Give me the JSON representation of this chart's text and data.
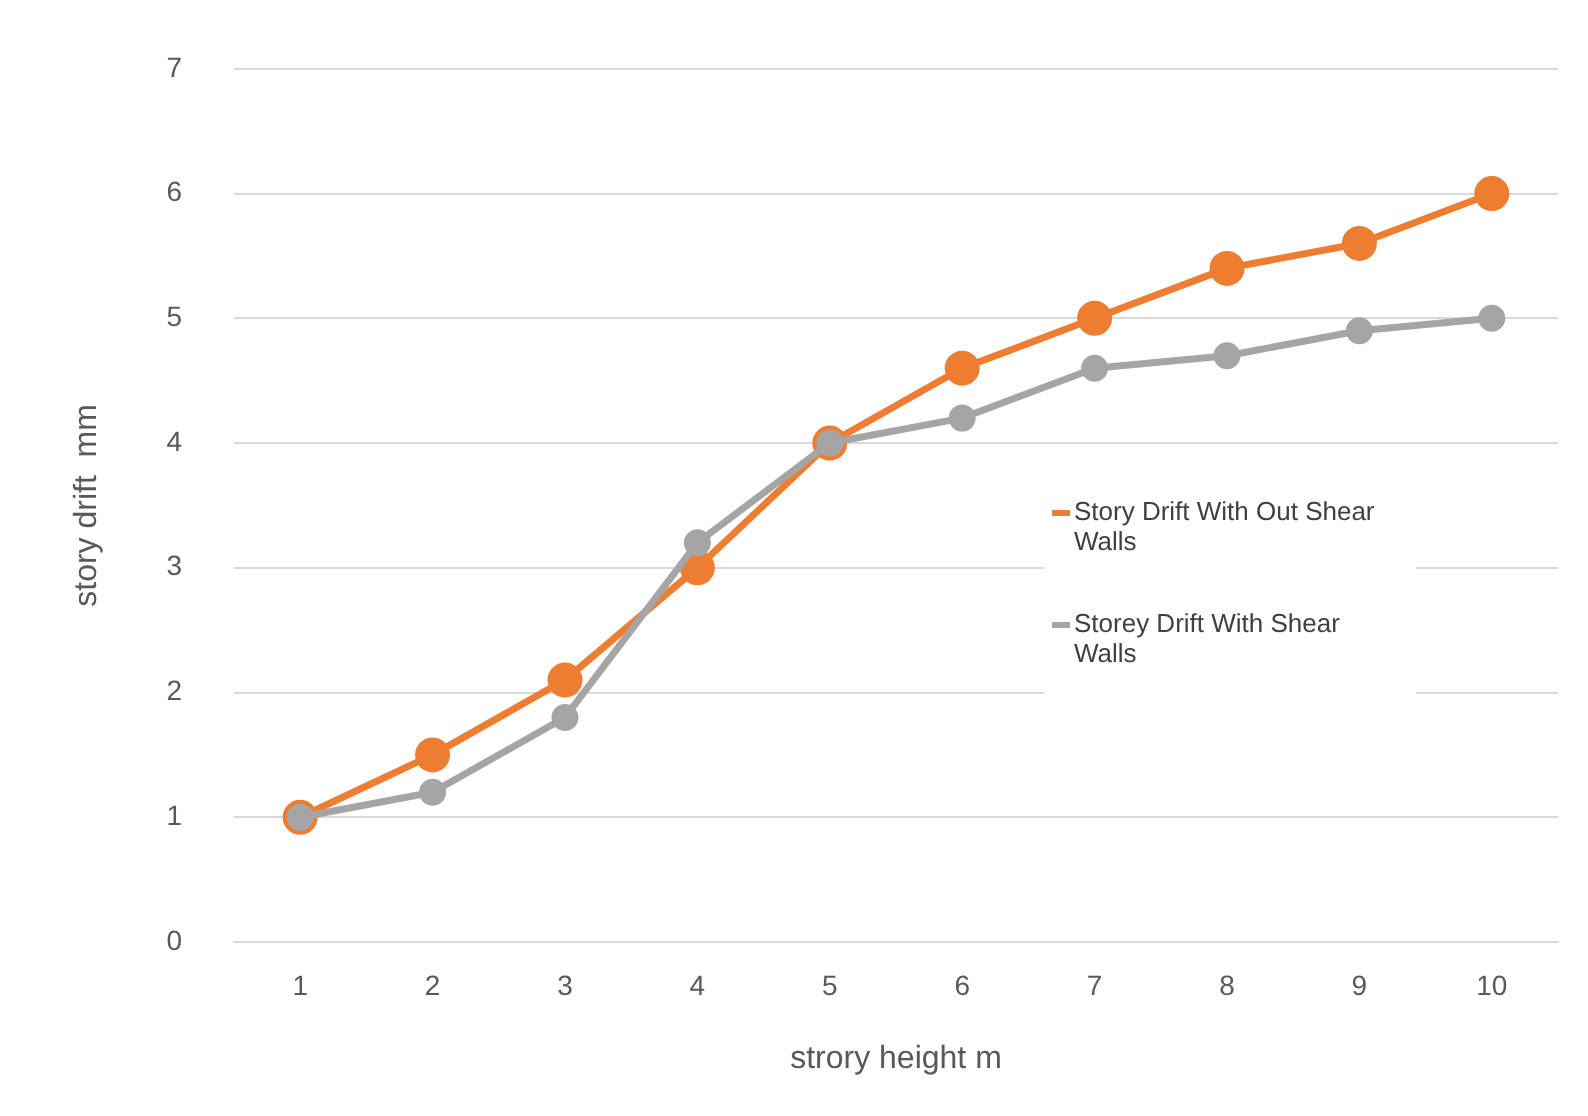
{
  "chart_data": {
    "type": "line",
    "xlabel": "strory height m",
    "ylabel": "story drift  mm",
    "categories": [
      "1",
      "2",
      "3",
      "4",
      "5",
      "6",
      "7",
      "8",
      "9",
      "10"
    ],
    "series": [
      {
        "name": "Story Drift With Out Shear Walls",
        "color": "#ed7d31",
        "values": [
          1,
          1.5,
          2.1,
          3,
          4,
          4.6,
          5,
          5.4,
          5.6,
          6
        ]
      },
      {
        "name": "Storey Drift With Shear Walls",
        "color": "#a5a5a5",
        "values": [
          1,
          1.2,
          1.8,
          3.2,
          4,
          4.2,
          4.6,
          4.7,
          4.9,
          5
        ]
      }
    ],
    "ylim": [
      0,
      7
    ],
    "yticks": [
      0,
      1,
      2,
      3,
      4,
      5,
      6,
      7
    ],
    "grid": "y",
    "legend": "right",
    "marker": "circle",
    "line_style": "solid"
  }
}
